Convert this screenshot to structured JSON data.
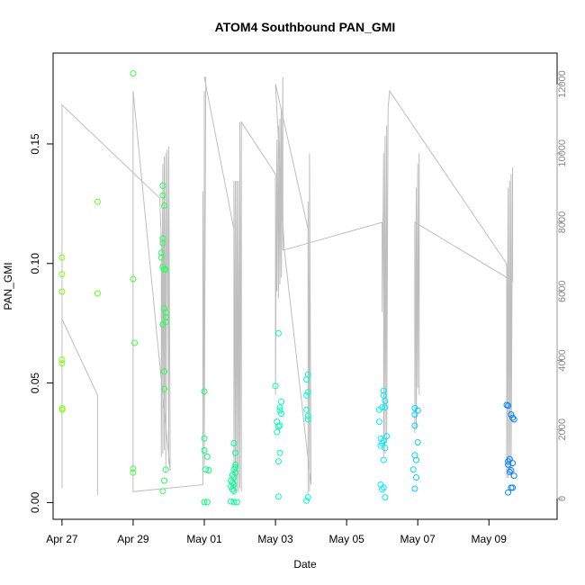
{
  "chart_data": {
    "type": "scatter",
    "title": "ATOM4 Southbound PAN_GMI",
    "xlabel": "Date",
    "ylabel": "PAN_GMI",
    "xlim": [
      "2016-04-26T18:00",
      "2016-05-10T22:00"
    ],
    "ylim": [
      -0.007,
      0.188
    ],
    "y2lim": [
      -600,
      12900
    ],
    "x_ticks": [
      {
        "at": "2016-04-27",
        "label": "Apr 27"
      },
      {
        "at": "2016-04-29",
        "label": "Apr 29"
      },
      {
        "at": "2016-05-01",
        "label": "May 01"
      },
      {
        "at": "2016-05-03",
        "label": "May 03"
      },
      {
        "at": "2016-05-05",
        "label": "May 05"
      },
      {
        "at": "2016-05-07",
        "label": "May 07"
      },
      {
        "at": "2016-05-09",
        "label": "May 09"
      }
    ],
    "y_ticks": [
      {
        "at": 0.0,
        "label": "0.00"
      },
      {
        "at": 0.05,
        "label": "0.05"
      },
      {
        "at": 0.1,
        "label": "0.10"
      },
      {
        "at": 0.15,
        "label": "0.15"
      }
    ],
    "y2_ticks": [
      {
        "at": 0,
        "label": "0"
      },
      {
        "at": 2000,
        "label": "2000"
      },
      {
        "at": 4000,
        "label": "4000"
      },
      {
        "at": 6000,
        "label": "6000"
      },
      {
        "at": 8000,
        "label": "8000"
      },
      {
        "at": 10000,
        "label": "10000"
      },
      {
        "at": 12000,
        "label": "12000"
      }
    ],
    "grid": false,
    "legend": "none",
    "colors": {
      "scatter_gradient": [
        "#7fff00",
        "#00ff7f",
        "#00ffff",
        "#0080ff"
      ],
      "altitude_line": "#bebebe"
    },
    "series": [
      {
        "kind": "points",
        "axis": "left",
        "points": [
          [
            "2016-04-27T00:00",
            0.1025
          ],
          [
            "2016-04-27T00:00",
            0.0955
          ],
          [
            "2016-04-27T00:00",
            0.0882
          ],
          [
            "2016-04-27T00:00",
            0.0598
          ],
          [
            "2016-04-27T00:00",
            0.0582
          ],
          [
            "2016-04-27T00:10",
            0.0395
          ],
          [
            "2016-04-27T00:10",
            0.0388
          ],
          [
            "2016-04-28T00:00",
            0.1258
          ],
          [
            "2016-04-28T00:00",
            0.0875
          ],
          [
            "2016-04-29T00:00",
            0.1795
          ],
          [
            "2016-04-29T00:00",
            0.0935
          ],
          [
            "2016-04-29T01:00",
            0.0668
          ],
          [
            "2016-04-29T00:00",
            0.0142
          ],
          [
            "2016-04-29T00:00",
            0.0125
          ],
          [
            "2016-04-29T20:00",
            0.1325
          ],
          [
            "2016-04-29T20:00",
            0.1285
          ],
          [
            "2016-04-29T21:00",
            0.1242
          ],
          [
            "2016-04-29T20:00",
            0.1105
          ],
          [
            "2016-04-29T20:00",
            0.1085
          ],
          [
            "2016-04-29T19:00",
            0.1045
          ],
          [
            "2016-04-29T19:00",
            0.1025
          ],
          [
            "2016-04-29T20:00",
            0.0985
          ],
          [
            "2016-04-29T21:00",
            0.0975
          ],
          [
            "2016-04-29T22:00",
            0.0975
          ],
          [
            "2016-04-29T21:00",
            0.0812
          ],
          [
            "2016-04-29T22:00",
            0.0795
          ],
          [
            "2016-04-29T22:00",
            0.0775
          ],
          [
            "2016-04-29T22:00",
            0.0755
          ],
          [
            "2016-04-29T20:00",
            0.0745
          ],
          [
            "2016-04-29T21:00",
            0.0548
          ],
          [
            "2016-04-29T21:00",
            0.0475
          ],
          [
            "2016-04-29T22:00",
            0.0138
          ],
          [
            "2016-04-29T21:00",
            0.0092
          ],
          [
            "2016-04-29T20:00",
            0.0048
          ],
          [
            "2016-05-01T00:00",
            0.0465
          ],
          [
            "2016-05-01T00:00",
            0.0268
          ],
          [
            "2016-05-01T00:00",
            0.0218
          ],
          [
            "2016-05-01T02:00",
            0.0192
          ],
          [
            "2016-05-01T01:00",
            0.0138
          ],
          [
            "2016-05-01T03:00",
            0.0135
          ],
          [
            "2016-05-01T00:00",
            0.0002
          ],
          [
            "2016-05-01T02:00",
            0.0002
          ],
          [
            "2016-05-01T20:00",
            0.0248
          ],
          [
            "2016-05-01T21:00",
            0.0208
          ],
          [
            "2016-05-01T21:00",
            0.0158
          ],
          [
            "2016-05-01T21:00",
            0.0148
          ],
          [
            "2016-05-01T20:00",
            0.0138
          ],
          [
            "2016-05-01T21:00",
            0.0125
          ],
          [
            "2016-05-01T19:00",
            0.0115
          ],
          [
            "2016-05-01T20:00",
            0.0105
          ],
          [
            "2016-05-01T18:00",
            0.0092
          ],
          [
            "2016-05-01T19:00",
            0.0082
          ],
          [
            "2016-05-01T20:00",
            0.0075
          ],
          [
            "2016-05-01T18:00",
            0.0068
          ],
          [
            "2016-05-01T19:00",
            0.0055
          ],
          [
            "2016-05-01T20:00",
            0.0048
          ],
          [
            "2016-05-01T18:00",
            0.0005
          ],
          [
            "2016-05-01T20:00",
            0.0002
          ],
          [
            "2016-05-01T22:00",
            0.0002
          ],
          [
            "2016-05-03T02:00",
            0.0708
          ],
          [
            "2016-05-03T00:00",
            0.0488
          ],
          [
            "2016-05-03T04:00",
            0.0422
          ],
          [
            "2016-05-03T03:00",
            0.0398
          ],
          [
            "2016-05-03T03:00",
            0.0385
          ],
          [
            "2016-05-03T04:00",
            0.0372
          ],
          [
            "2016-05-03T01:00",
            0.0338
          ],
          [
            "2016-05-03T03:00",
            0.0322
          ],
          [
            "2016-05-03T02:00",
            0.0318
          ],
          [
            "2016-05-03T01:00",
            0.0295
          ],
          [
            "2016-05-03T03:00",
            0.0208
          ],
          [
            "2016-05-03T02:00",
            0.0172
          ],
          [
            "2016-05-03T02:00",
            0.0025
          ],
          [
            "2016-05-03T22:00",
            0.0535
          ],
          [
            "2016-05-03T21:00",
            0.0515
          ],
          [
            "2016-05-03T22:00",
            0.0462
          ],
          [
            "2016-05-03T21:00",
            0.0448
          ],
          [
            "2016-05-03T21:00",
            0.0388
          ],
          [
            "2016-05-03T22:00",
            0.0362
          ],
          [
            "2016-05-03T22:00",
            0.0348
          ],
          [
            "2016-05-03T22:00",
            0.0022
          ],
          [
            "2016-05-03T21:00",
            0.0008
          ],
          [
            "2016-05-06T01:00",
            0.0468
          ],
          [
            "2016-05-06T00:00",
            0.0398
          ],
          [
            "2016-05-06T01:00",
            0.0448
          ],
          [
            "2016-05-06T02:00",
            0.0425
          ],
          [
            "2016-05-06T02:00",
            0.0398
          ],
          [
            "2016-05-05T22:00",
            0.0388
          ],
          [
            "2016-05-05T22:00",
            0.0338
          ],
          [
            "2016-05-06T03:00",
            0.0278
          ],
          [
            "2016-05-05T23:00",
            0.0268
          ],
          [
            "2016-05-06T01:00",
            0.0258
          ],
          [
            "2016-05-06T00:00",
            0.0248
          ],
          [
            "2016-05-05T23:00",
            0.0238
          ],
          [
            "2016-05-06T02:00",
            0.0228
          ],
          [
            "2016-05-06T01:00",
            0.0178
          ],
          [
            "2016-05-05T23:00",
            0.0075
          ],
          [
            "2016-05-06T01:00",
            0.0062
          ],
          [
            "2016-05-06T00:00",
            0.0055
          ],
          [
            "2016-05-06T02:00",
            0.0022
          ],
          [
            "2016-05-06T22:00",
            0.0395
          ],
          [
            "2016-05-07T00:00",
            0.0385
          ],
          [
            "2016-05-06T22:00",
            0.0368
          ],
          [
            "2016-05-06T22:00",
            0.0322
          ],
          [
            "2016-05-07T00:00",
            0.0252
          ],
          [
            "2016-05-06T22:00",
            0.0198
          ],
          [
            "2016-05-06T23:00",
            0.0178
          ],
          [
            "2016-05-06T21:00",
            0.0138
          ],
          [
            "2016-05-06T23:00",
            0.0105
          ],
          [
            "2016-05-06T22:00",
            0.0058
          ],
          [
            "2016-05-09T12:00",
            0.0408
          ],
          [
            "2016-05-09T13:00",
            0.0405
          ],
          [
            "2016-05-09T15:00",
            0.0368
          ],
          [
            "2016-05-09T16:00",
            0.0355
          ],
          [
            "2016-05-09T17:00",
            0.0348
          ],
          [
            "2016-05-09T14:00",
            0.0182
          ],
          [
            "2016-05-09T13:00",
            0.0172
          ],
          [
            "2016-05-09T16:00",
            0.0165
          ],
          [
            "2016-05-09T13:00",
            0.0158
          ],
          [
            "2016-05-09T15:00",
            0.0135
          ],
          [
            "2016-05-09T14:00",
            0.0128
          ],
          [
            "2016-05-09T17:00",
            0.0112
          ],
          [
            "2016-05-09T15:00",
            0.0062
          ],
          [
            "2016-05-09T16:00",
            0.0062
          ],
          [
            "2016-05-09T13:00",
            0.0042
          ]
        ]
      },
      {
        "kind": "line",
        "axis": "right",
        "points": [
          [
            "2016-04-27T00:00",
            300
          ],
          [
            "2016-04-27T00:00",
            7600
          ],
          [
            "2016-04-27T00:00",
            11400
          ],
          [
            "2016-04-29T18:00",
            8700
          ],
          [
            "2016-04-29T19:00",
            7500
          ],
          [
            "2016-04-29T19:00",
            1200
          ],
          [
            "2016-04-29T20:00",
            9700
          ],
          [
            "2016-04-29T20:00",
            1300
          ],
          [
            "2016-04-29T21:00",
            9900
          ],
          [
            "2016-04-29T21:00",
            1400
          ],
          [
            "2016-04-29T22:00",
            10000
          ],
          [
            "2016-04-29T22:00",
            800
          ],
          [
            "2016-04-29T23:00",
            10100
          ],
          [
            "2016-04-30T00:00",
            1000
          ],
          [
            "2016-04-30T00:00",
            10200
          ],
          [
            "2016-04-30T01:00",
            800
          ],
          [
            "2016-04-29T00:00",
            11800
          ],
          [
            "2016-04-29T00:00",
            200
          ],
          [
            "2016-04-30T23:00",
            400
          ],
          [
            "2016-04-30T23:00",
            8900
          ],
          [
            "2016-05-01T00:00",
            900
          ],
          [
            "2016-05-01T00:00",
            11800
          ],
          [
            "2016-05-01T00:00",
            1500
          ],
          [
            "2016-05-01T01:00",
            12200
          ],
          [
            "2016-05-01T00:00",
            12200
          ],
          [
            "2016-05-01T20:00",
            7800
          ],
          [
            "2016-05-01T20:00",
            200
          ],
          [
            "2016-05-01T20:00",
            9200
          ],
          [
            "2016-05-01T21:00",
            200
          ],
          [
            "2016-05-01T21:00",
            9200
          ],
          [
            "2016-05-01T22:00",
            200
          ],
          [
            "2016-05-01T22:00",
            9200
          ],
          [
            "2016-05-01T23:00",
            200
          ],
          [
            "2016-05-01T23:00",
            9200
          ],
          [
            "2016-05-02T00:00",
            300
          ],
          [
            "2016-05-02T00:00",
            10900
          ],
          [
            "2016-05-02T01:00",
            200
          ],
          [
            "2016-05-02T01:00",
            10900
          ],
          [
            "2016-05-03T00:00",
            9400
          ],
          [
            "2016-05-03T00:00",
            3000
          ],
          [
            "2016-05-03T01:00",
            10400
          ],
          [
            "2016-05-03T01:00",
            6000
          ],
          [
            "2016-05-03T02:00",
            10800
          ],
          [
            "2016-05-03T02:00",
            5800
          ],
          [
            "2016-05-03T03:00",
            11000
          ],
          [
            "2016-05-03T03:00",
            6200
          ],
          [
            "2016-05-03T04:00",
            11300
          ],
          [
            "2016-05-03T04:00",
            6400
          ],
          [
            "2016-05-03T05:00",
            12200
          ],
          [
            "2016-05-03T05:00",
            7200
          ],
          [
            "2016-05-03T06:00",
            7200
          ],
          [
            "2016-05-03T00:00",
            12000
          ],
          [
            "2016-05-03T22:00",
            7800
          ],
          [
            "2016-05-03T22:00",
            100
          ],
          [
            "2016-05-03T22:00",
            8600
          ],
          [
            "2016-05-03T23:00",
            200
          ],
          [
            "2016-05-03T23:00",
            10000
          ],
          [
            "2016-05-04T00:00",
            400
          ],
          [
            "2016-05-03T06:00",
            7200
          ],
          [
            "2016-05-06T00:00",
            8000
          ],
          [
            "2016-05-06T00:00",
            5400
          ],
          [
            "2016-05-06T01:00",
            10000
          ],
          [
            "2016-05-06T01:00",
            1200
          ],
          [
            "2016-05-06T02:00",
            10500
          ],
          [
            "2016-05-06T02:00",
            1300
          ],
          [
            "2016-05-06T03:00",
            10800
          ],
          [
            "2016-05-06T03:00",
            1600
          ],
          [
            "2016-05-06T04:00",
            11300
          ],
          [
            "2016-05-06T05:00",
            11800
          ],
          [
            "2016-05-06T05:00",
            11800
          ],
          [
            "2016-05-09T12:00",
            6800
          ],
          [
            "2016-05-09T12:00",
            600
          ],
          [
            "2016-05-09T13:00",
            9000
          ],
          [
            "2016-05-09T13:00",
            600
          ],
          [
            "2016-05-09T14:00",
            9200
          ],
          [
            "2016-05-09T14:00",
            700
          ],
          [
            "2016-05-09T15:00",
            9400
          ],
          [
            "2016-05-09T15:00",
            600
          ],
          [
            "2016-05-09T16:00",
            9600
          ],
          [
            "2016-05-09T16:00",
            6300
          ],
          [
            "2016-05-06T22:00",
            8000
          ],
          [
            "2016-05-06T22:00",
            1900
          ],
          [
            "2016-05-06T23:00",
            9000
          ],
          [
            "2016-05-06T23:00",
            2000
          ],
          [
            "2016-05-07T00:00",
            9700
          ],
          [
            "2016-05-07T00:00",
            3200
          ],
          [
            "2016-05-07T01:00",
            10000
          ],
          [
            "2016-05-07T01:00",
            3000
          ]
        ]
      },
      {
        "kind": "line",
        "axis": "right",
        "points": [
          [
            "2016-04-27T00:00",
            5200
          ],
          [
            "2016-04-28T00:00",
            3000
          ],
          [
            "2016-04-28T00:00",
            100
          ]
        ]
      }
    ]
  }
}
